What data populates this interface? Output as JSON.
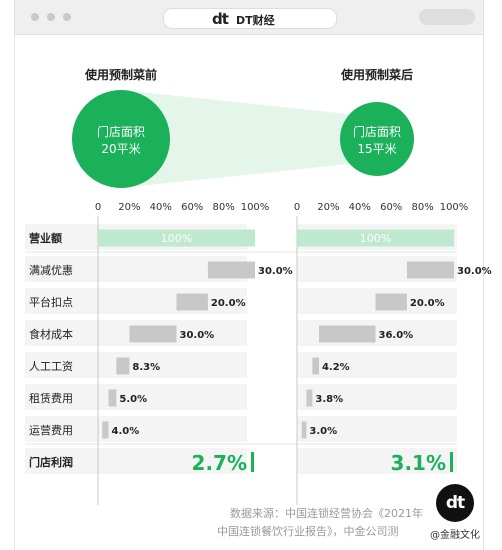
{
  "window": {
    "brand_logo": "dt",
    "brand_name": "DT财经"
  },
  "chart_data": {
    "type": "bar",
    "panels": [
      {
        "title": "使用预制菜前",
        "circle_label_1": "门店面积",
        "circle_label_2": "20平米",
        "values": [
          100,
          30.0,
          20.0,
          30.0,
          8.3,
          5.0,
          4.0,
          2.7
        ],
        "value_labels": [
          "100%",
          "30.0%",
          "20.0%",
          "30.0%",
          "8.3%",
          "5.0%",
          "4.0%",
          "2.7%"
        ]
      },
      {
        "title": "使用预制菜后",
        "circle_label_1": "门店面积",
        "circle_label_2": "15平米",
        "values": [
          100,
          30.0,
          20.0,
          36.0,
          4.2,
          3.8,
          3.0,
          3.1
        ],
        "value_labels": [
          "100%",
          "30.0%",
          "20.0%",
          "36.0%",
          "4.2%",
          "3.8%",
          "3.0%",
          "3.1%"
        ]
      }
    ],
    "categories": [
      "营业额",
      "满减优惠",
      "平台扣点",
      "食材成本",
      "人工工资",
      "租赁费用",
      "运营费用",
      "门店利润"
    ],
    "x_ticks": [
      "0",
      "20%",
      "40%",
      "60%",
      "80%",
      "100%"
    ],
    "xlim": [
      0,
      100
    ],
    "colors": {
      "revenue": "#bfe9cf",
      "cost": "#c8c8c8",
      "profit": "#1ab15a",
      "circle": "#1ab15a",
      "connector": "#e4f6ea",
      "row_band": "#f4f4f4"
    }
  },
  "source": {
    "line1": "数据来源：中国连锁经营协会《2021年",
    "line2": "中国连锁餐饮行业报告》，中金公司测"
  },
  "watermark": {
    "logo": "dt",
    "text": "@金融文化"
  }
}
